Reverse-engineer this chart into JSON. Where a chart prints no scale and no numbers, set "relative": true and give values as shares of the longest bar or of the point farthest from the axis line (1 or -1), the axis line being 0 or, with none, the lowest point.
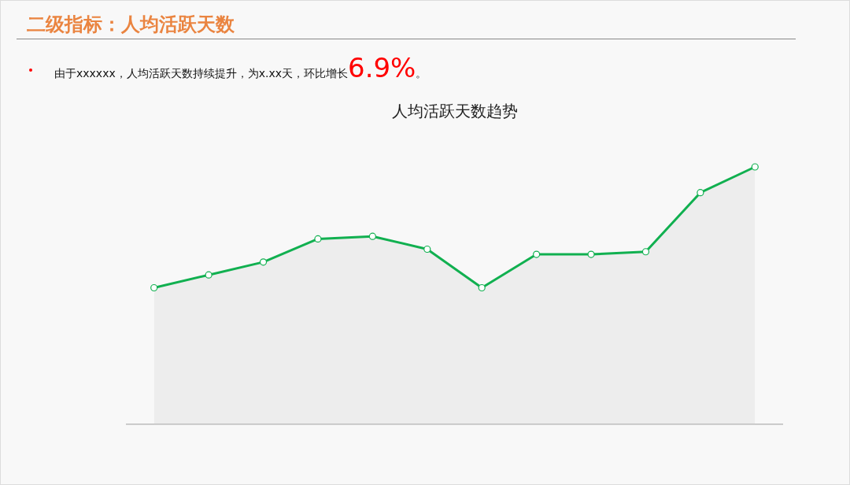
{
  "chart_data": {
    "type": "area",
    "title": "人均活跃天数趋势",
    "annotations": [
      "二级指标：人均活跃天数",
      "由于xxxxxx，人均活跃天数持续提升，为x.xx天，环比增长6.9%。"
    ],
    "categories": [
      null,
      null,
      null,
      null,
      null,
      null,
      null,
      null,
      null,
      null,
      null,
      null
    ],
    "values": [
      0.53,
      0.58,
      0.63,
      0.72,
      0.73,
      0.68,
      0.53,
      0.66,
      0.66,
      0.67,
      0.9,
      1
    ],
    "color": "#11b050",
    "relative": true,
    "marker": "circle"
  }
}
